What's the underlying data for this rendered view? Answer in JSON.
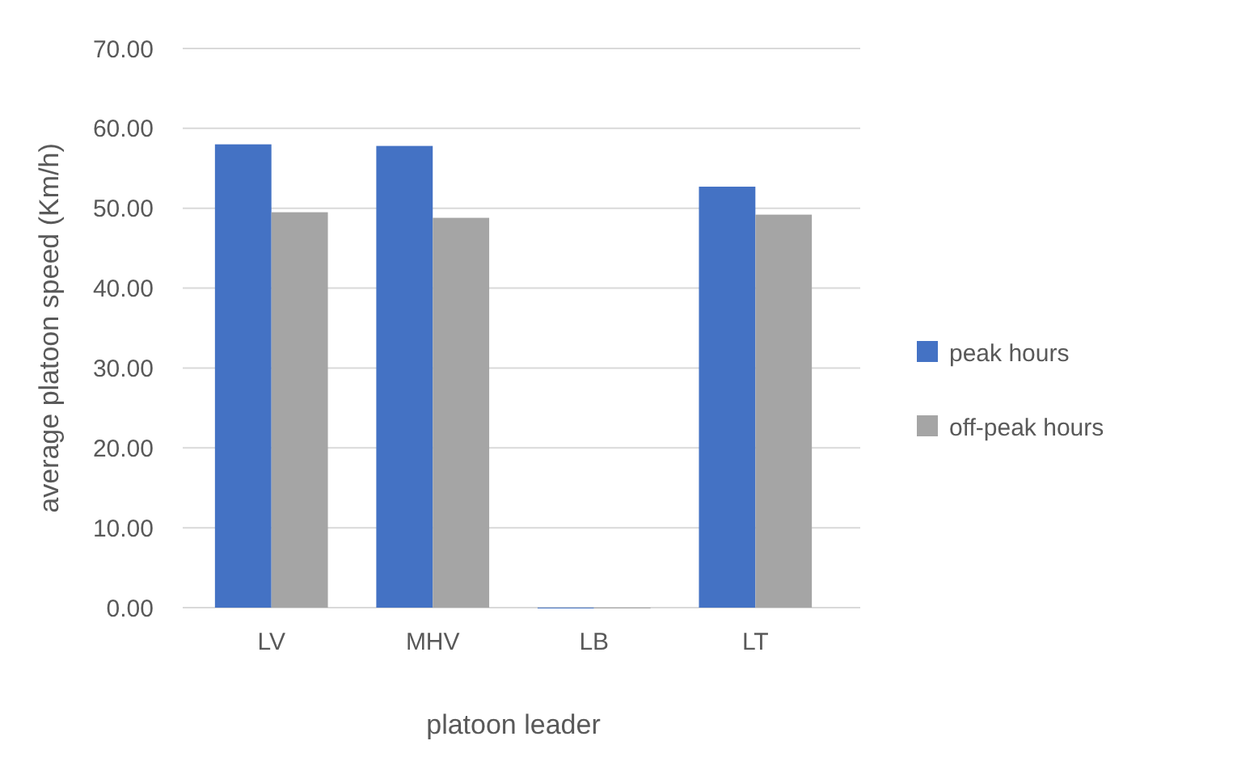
{
  "chart_data": {
    "type": "bar",
    "xlabel": "platoon leader",
    "ylabel": "average platoon speed (Km/h)",
    "categories": [
      "LV",
      "MHV",
      "LB",
      "LT"
    ],
    "series": [
      {
        "name": "peak hours",
        "color": "#4472c4",
        "values": [
          58.0,
          57.8,
          0,
          52.7
        ]
      },
      {
        "name": "off-peak hours",
        "color": "#a5a5a5",
        "values": [
          49.5,
          48.8,
          0,
          49.2
        ]
      }
    ],
    "ylim": [
      0,
      70
    ],
    "yticks": [
      {
        "value": 0,
        "label": "0.00"
      },
      {
        "value": 10,
        "label": "10.00"
      },
      {
        "value": 20,
        "label": "20.00"
      },
      {
        "value": 30,
        "label": "30.00"
      },
      {
        "value": 40,
        "label": "40.00"
      },
      {
        "value": 50,
        "label": "50.00"
      },
      {
        "value": 60,
        "label": "60.00"
      },
      {
        "value": 70,
        "label": "70.00"
      }
    ],
    "grid": "y",
    "legend": "right"
  }
}
